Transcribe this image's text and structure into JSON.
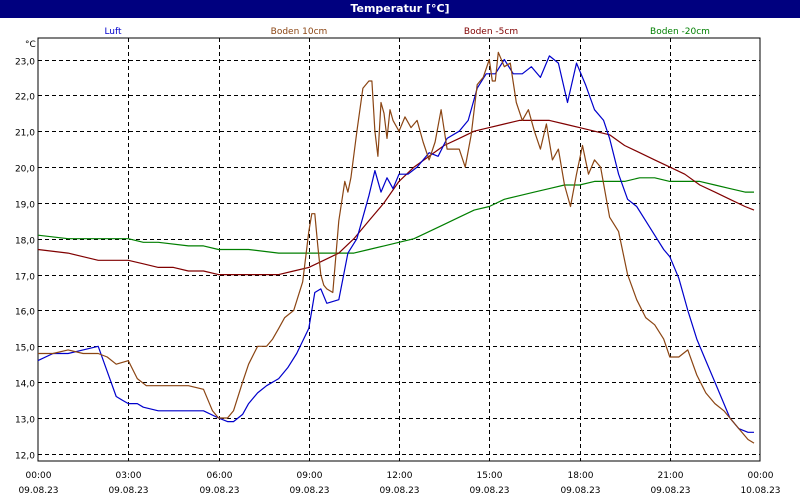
{
  "chart_data": {
    "type": "line",
    "title": "Temperatur [°C]",
    "ylabel": "°C",
    "xlabel": "",
    "ylim": [
      11.8,
      23.6
    ],
    "xlim": [
      0,
      24
    ],
    "grid": true,
    "legend_position": "top",
    "y_ticks": [
      "23,0",
      "22,0",
      "21,0",
      "20,0",
      "19,0",
      "18,0",
      "17,0",
      "16,0",
      "15,0",
      "14,0",
      "13,0",
      "12,0"
    ],
    "y_tick_values": [
      23,
      22,
      21,
      20,
      19,
      18,
      17,
      16,
      15,
      14,
      13,
      12
    ],
    "x_ticks": [
      {
        "time": "00:00",
        "date": "09.08.23"
      },
      {
        "time": "03:00",
        "date": "09.08.23"
      },
      {
        "time": "06:00",
        "date": "09.08.23"
      },
      {
        "time": "09:00",
        "date": "09.08.23"
      },
      {
        "time": "12:00",
        "date": "09.08.23"
      },
      {
        "time": "15:00",
        "date": "09.08.23"
      },
      {
        "time": "18:00",
        "date": "09.08.23"
      },
      {
        "time": "21:00",
        "date": "09.08.23"
      },
      {
        "time": "00:00",
        "date": "10.08.23"
      }
    ],
    "x_tick_values": [
      0,
      3,
      6,
      9,
      12,
      15,
      18,
      21,
      24
    ],
    "series": [
      {
        "name": "Luft",
        "color": "#0000cc",
        "x": [
          0,
          0.5,
          1,
          1.5,
          2,
          2.3,
          2.6,
          2.8,
          3,
          3.3,
          3.5,
          4,
          4.5,
          5,
          5.5,
          6,
          6.3,
          6.5,
          6.8,
          7,
          7.3,
          7.6,
          8,
          8.3,
          8.6,
          9,
          9.2,
          9.4,
          9.6,
          10,
          10.3,
          10.6,
          10.8,
          11,
          11.2,
          11.4,
          11.6,
          11.8,
          12,
          12.3,
          12.6,
          13,
          13.3,
          13.6,
          14,
          14.3,
          14.6,
          14.9,
          15.2,
          15.5,
          15.8,
          16.1,
          16.4,
          16.7,
          17,
          17.3,
          17.6,
          17.9,
          18.2,
          18.5,
          18.8,
          19,
          19.3,
          19.6,
          19.9,
          20.2,
          20.5,
          20.8,
          21,
          21.3,
          21.6,
          21.9,
          22.2,
          22.5,
          22.8,
          23,
          23.3,
          23.6,
          23.8
        ],
        "y": [
          14.6,
          14.8,
          14.8,
          14.9,
          15.0,
          14.3,
          13.6,
          13.5,
          13.4,
          13.4,
          13.3,
          13.2,
          13.2,
          13.2,
          13.2,
          13.0,
          12.9,
          12.9,
          13.1,
          13.4,
          13.7,
          13.9,
          14.1,
          14.4,
          14.8,
          15.5,
          16.5,
          16.6,
          16.2,
          16.3,
          17.6,
          18.0,
          18.6,
          19.2,
          19.9,
          19.3,
          19.7,
          19.4,
          19.8,
          19.8,
          20.0,
          20.4,
          20.3,
          20.8,
          21.0,
          21.3,
          22.2,
          22.6,
          22.6,
          23.0,
          22.6,
          22.6,
          22.8,
          22.5,
          23.1,
          22.9,
          21.8,
          22.9,
          22.3,
          21.6,
          21.3,
          20.8,
          19.8,
          19.1,
          18.9,
          18.5,
          18.1,
          17.7,
          17.5,
          16.9,
          16.0,
          15.2,
          14.6,
          14.0,
          13.4,
          13.0,
          12.7,
          12.6,
          12.6
        ]
      },
      {
        "name": "Boden 10cm",
        "color": "#8b4513",
        "x": [
          0,
          0.5,
          1,
          1.5,
          2,
          2.3,
          2.6,
          3,
          3.3,
          3.6,
          4,
          4.5,
          5,
          5.5,
          5.8,
          6,
          6.3,
          6.5,
          6.8,
          7,
          7.3,
          7.6,
          7.8,
          8,
          8.2,
          8.5,
          8.8,
          9,
          9.1,
          9.2,
          9.3,
          9.4,
          9.5,
          9.6,
          9.8,
          10,
          10.2,
          10.3,
          10.4,
          10.6,
          10.8,
          11,
          11.1,
          11.2,
          11.3,
          11.4,
          11.5,
          11.6,
          11.7,
          11.8,
          12,
          12.2,
          12.4,
          12.6,
          12.8,
          13,
          13.2,
          13.4,
          13.6,
          13.8,
          14,
          14.2,
          14.4,
          14.6,
          14.8,
          15,
          15.1,
          15.2,
          15.3,
          15.5,
          15.7,
          15.9,
          16.1,
          16.3,
          16.5,
          16.7,
          16.9,
          17.1,
          17.3,
          17.5,
          17.7,
          17.9,
          18.1,
          18.3,
          18.5,
          18.7,
          19,
          19.3,
          19.6,
          19.9,
          20.2,
          20.5,
          20.8,
          21,
          21.3,
          21.6,
          21.9,
          22.2,
          22.5,
          22.8,
          23,
          23.3,
          23.6,
          23.8
        ],
        "y": [
          14.8,
          14.8,
          14.9,
          14.8,
          14.8,
          14.7,
          14.5,
          14.6,
          14.1,
          13.9,
          13.9,
          13.9,
          13.9,
          13.8,
          13.2,
          13.0,
          13.0,
          13.2,
          14.0,
          14.5,
          15.0,
          15.0,
          15.2,
          15.5,
          15.8,
          16.0,
          16.8,
          18.2,
          18.7,
          18.7,
          17.8,
          17.0,
          16.7,
          16.6,
          16.5,
          18.5,
          19.6,
          19.3,
          19.7,
          21.0,
          22.2,
          22.4,
          22.4,
          21.0,
          20.3,
          21.8,
          21.5,
          20.8,
          21.6,
          21.3,
          21.0,
          21.4,
          21.1,
          21.3,
          20.7,
          20.2,
          20.7,
          21.6,
          20.5,
          20.5,
          20.5,
          20.0,
          20.9,
          22.3,
          22.5,
          23.0,
          22.4,
          22.4,
          23.2,
          22.8,
          22.9,
          21.8,
          21.3,
          21.6,
          21.0,
          20.5,
          21.2,
          20.2,
          20.5,
          19.5,
          18.9,
          19.8,
          20.6,
          19.8,
          20.2,
          20.0,
          18.6,
          18.2,
          17.0,
          16.3,
          15.8,
          15.6,
          15.2,
          14.7,
          14.7,
          14.9,
          14.2,
          13.7,
          13.4,
          13.2,
          13.0,
          12.7,
          12.4,
          12.3
        ]
      },
      {
        "name": "Boden -5cm",
        "color": "#800000",
        "x": [
          0,
          1,
          1.5,
          2,
          3,
          3.5,
          4,
          4.5,
          5,
          5.5,
          6,
          6.5,
          7,
          7.5,
          8,
          8.5,
          9,
          9.5,
          10,
          10.5,
          11,
          11.5,
          12,
          12.5,
          13,
          13.5,
          14,
          14.5,
          15,
          15.5,
          16,
          16.5,
          17,
          17.5,
          18,
          18.5,
          19,
          19.5,
          20,
          20.5,
          21,
          21.5,
          22,
          22.5,
          23,
          23.5,
          23.8
        ],
        "y": [
          17.7,
          17.6,
          17.5,
          17.4,
          17.4,
          17.3,
          17.2,
          17.2,
          17.1,
          17.1,
          17.0,
          17.0,
          17.0,
          17.0,
          17.0,
          17.1,
          17.2,
          17.4,
          17.6,
          18.0,
          18.5,
          19.0,
          19.6,
          20.0,
          20.3,
          20.6,
          20.8,
          21.0,
          21.1,
          21.2,
          21.3,
          21.3,
          21.3,
          21.2,
          21.1,
          21.0,
          20.9,
          20.6,
          20.4,
          20.2,
          20.0,
          19.8,
          19.5,
          19.3,
          19.1,
          18.9,
          18.8
        ]
      },
      {
        "name": "Boden -20cm",
        "color": "#007f00",
        "x": [
          0,
          1,
          2,
          3,
          3.5,
          4,
          5,
          5.5,
          6,
          7,
          8,
          9,
          10,
          10.5,
          11,
          11.5,
          12,
          12.5,
          13,
          13.5,
          14,
          14.5,
          15,
          15.5,
          16,
          16.5,
          17,
          17.5,
          18,
          18.5,
          19,
          19.5,
          20,
          20.5,
          21,
          21.5,
          22,
          22.5,
          23,
          23.5,
          23.8
        ],
        "y": [
          18.1,
          18.0,
          18.0,
          18.0,
          17.9,
          17.9,
          17.8,
          17.8,
          17.7,
          17.7,
          17.6,
          17.6,
          17.6,
          17.6,
          17.7,
          17.8,
          17.9,
          18.0,
          18.2,
          18.4,
          18.6,
          18.8,
          18.9,
          19.1,
          19.2,
          19.3,
          19.4,
          19.5,
          19.5,
          19.6,
          19.6,
          19.6,
          19.7,
          19.7,
          19.6,
          19.6,
          19.6,
          19.5,
          19.4,
          19.3,
          19.3
        ]
      }
    ]
  }
}
